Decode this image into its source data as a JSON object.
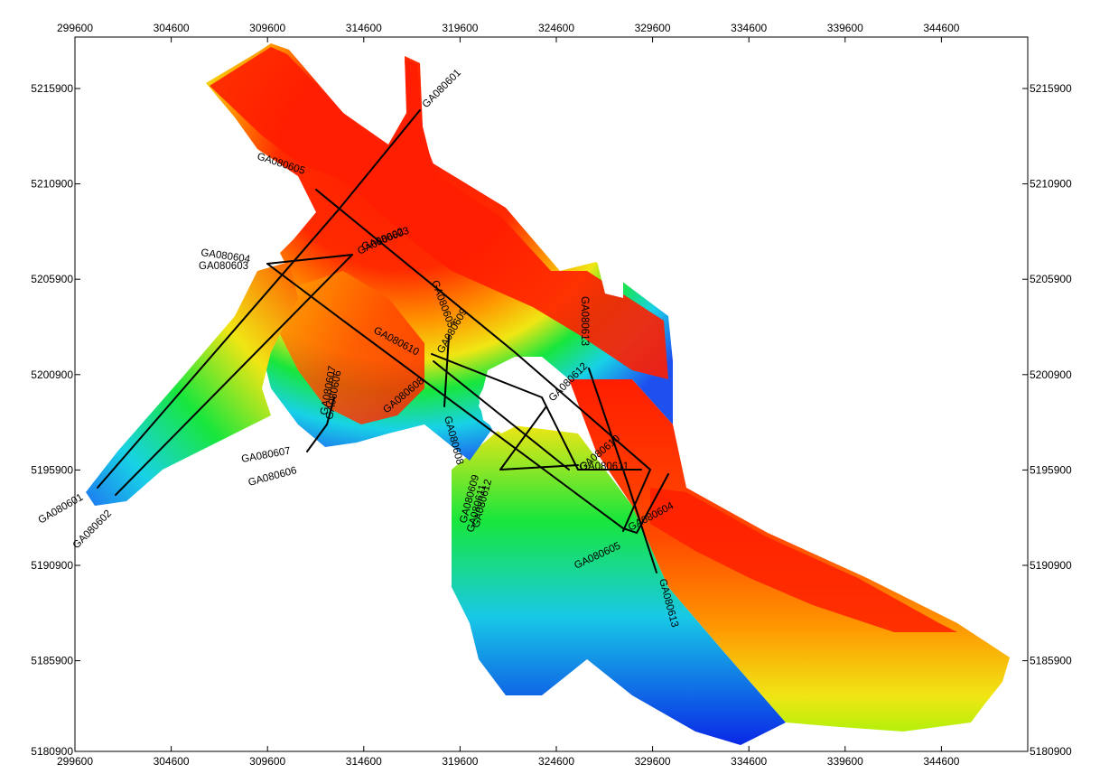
{
  "map": {
    "x_ticks": [
      "299600",
      "304600",
      "309600",
      "314600",
      "319600",
      "324600",
      "329600",
      "334600",
      "339600",
      "344600"
    ],
    "y_ticks": [
      "5215900",
      "5210900",
      "5205900",
      "5200900",
      "5195900",
      "5190900",
      "5185900",
      "5180900"
    ],
    "color_ramp": [
      "#0a1ee6",
      "#1e8cf0",
      "#18e6e6",
      "#18e63c",
      "#b4f00a",
      "#f0e614",
      "#ff9600",
      "#ff1e00"
    ],
    "tracks": [
      {
        "id": "t601",
        "label": "GA080601"
      },
      {
        "id": "t602",
        "label": "GA080602"
      },
      {
        "id": "t603",
        "label": "GA080603"
      },
      {
        "id": "t604",
        "label": "GA080604"
      },
      {
        "id": "t605",
        "label": "GA080605"
      },
      {
        "id": "t606",
        "label": "GA080606"
      },
      {
        "id": "t607",
        "label": "GA080607"
      },
      {
        "id": "t608",
        "label": "GA080608"
      },
      {
        "id": "t609",
        "label": "GA080609"
      },
      {
        "id": "t610",
        "label": "GA080610"
      },
      {
        "id": "t611",
        "label": "GA080611"
      },
      {
        "id": "t612",
        "label": "GA080612"
      },
      {
        "id": "t613",
        "label": "GA080613"
      }
    ]
  }
}
